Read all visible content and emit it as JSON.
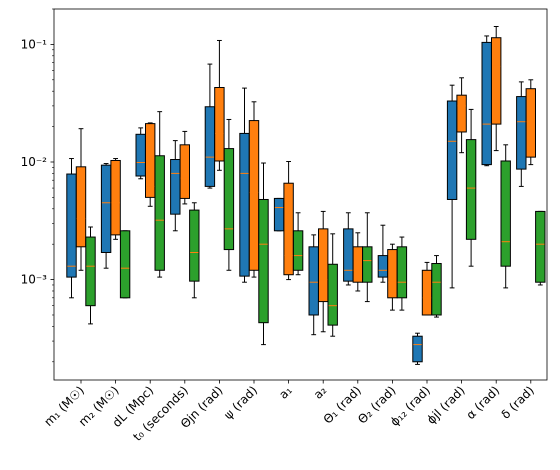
{
  "chart_data": {
    "type": "boxplot",
    "title": "",
    "xlabel": "",
    "ylabel": "",
    "yscale": "log",
    "ylim": [
      0.00014,
      0.2
    ],
    "grid": false,
    "legend": "none",
    "y_ticks": [
      {
        "value": 0.001,
        "label": "10⁻³"
      },
      {
        "value": 0.01,
        "label": "10⁻²"
      },
      {
        "value": 0.1,
        "label": "10⁻¹"
      }
    ],
    "series_colors": [
      "#1f77b4",
      "#ff7f0e",
      "#2ca02c"
    ],
    "median_color": "#ff7f0e",
    "categories": [
      {
        "label": "m₁ (M☉)",
        "boxes": [
          {
            "whislo": 0.0007,
            "q1": 0.00105,
            "med": 0.0013,
            "q3": 0.0079,
            "whishi": 0.0107
          },
          {
            "whislo": 0.0012,
            "q1": 0.0019,
            "med": 0.0033,
            "q3": 0.0091,
            "whishi": 0.0192
          },
          {
            "whislo": 0.00042,
            "q1": 0.0006,
            "med": 0.0013,
            "q3": 0.0023,
            "whishi": 0.0028
          }
        ]
      },
      {
        "label": "m₂ (M☉)",
        "boxes": [
          {
            "whislo": 0.00125,
            "q1": 0.0017,
            "med": 0.0045,
            "q3": 0.0094,
            "whishi": 0.0097
          },
          {
            "whislo": 0.0022,
            "q1": 0.0024,
            "med": 0.0045,
            "q3": 0.0103,
            "whishi": 0.0107
          },
          {
            "whislo": 0.0007,
            "q1": 0.0007,
            "med": 0.00125,
            "q3": 0.0026,
            "whishi": 0.0026
          }
        ]
      },
      {
        "label": "dL (Mpc)",
        "boxes": [
          {
            "whislo": 0.0072,
            "q1": 0.0076,
            "med": 0.0099,
            "q3": 0.0172,
            "whishi": 0.0195
          },
          {
            "whislo": 0.0042,
            "q1": 0.005,
            "med": 0.0062,
            "q3": 0.0212,
            "whishi": 0.0215
          },
          {
            "whislo": 0.00105,
            "q1": 0.0012,
            "med": 0.0032,
            "q3": 0.0113,
            "whishi": 0.0268
          }
        ]
      },
      {
        "label": "t₀ (seconds)",
        "boxes": [
          {
            "whislo": 0.0026,
            "q1": 0.0036,
            "med": 0.008,
            "q3": 0.0105,
            "whishi": 0.0152
          },
          {
            "whislo": 0.0044,
            "q1": 0.0049,
            "med": 0.0073,
            "q3": 0.014,
            "whishi": 0.0182
          },
          {
            "whislo": 0.0007,
            "q1": 0.00097,
            "med": 0.0017,
            "q3": 0.0039,
            "whishi": 0.0045
          }
        ]
      },
      {
        "label": "Θjn (rad)",
        "boxes": [
          {
            "whislo": 0.006,
            "q1": 0.0062,
            "med": 0.011,
            "q3": 0.0295,
            "whishi": 0.068
          },
          {
            "whislo": 0.0085,
            "q1": 0.0102,
            "med": 0.0175,
            "q3": 0.043,
            "whishi": 0.108
          },
          {
            "whislo": 0.0012,
            "q1": 0.0018,
            "med": 0.0027,
            "q3": 0.013,
            "whishi": 0.023
          }
        ]
      },
      {
        "label": "ψ (rad)",
        "boxes": [
          {
            "whislo": 0.00095,
            "q1": 0.00107,
            "med": 0.008,
            "q3": 0.0175,
            "whishi": 0.0425
          },
          {
            "whislo": 0.00105,
            "q1": 0.0012,
            "med": 0.0055,
            "q3": 0.0225,
            "whishi": 0.0325
          },
          {
            "whislo": 0.00028,
            "q1": 0.00043,
            "med": 0.002,
            "q3": 0.0048,
            "whishi": 0.0098
          }
        ]
      },
      {
        "label": "a₁",
        "boxes": [
          {
            "whislo": 0.0026,
            "q1": 0.0026,
            "med": 0.0041,
            "q3": 0.0049,
            "whishi": 0.0049
          },
          {
            "whislo": 0.001,
            "q1": 0.0011,
            "med": 0.0016,
            "q3": 0.0066,
            "whishi": 0.0101
          },
          {
            "whislo": 0.0011,
            "q1": 0.0012,
            "med": 0.0016,
            "q3": 0.0026,
            "whishi": 0.0037
          }
        ]
      },
      {
        "label": "a₂",
        "boxes": [
          {
            "whislo": 0.00034,
            "q1": 0.0005,
            "med": 0.00095,
            "q3": 0.0019,
            "whishi": 0.0024
          },
          {
            "whislo": 0.00036,
            "q1": 0.00065,
            "med": 0.001,
            "q3": 0.0027,
            "whishi": 0.0038
          },
          {
            "whislo": 0.00033,
            "q1": 0.00041,
            "med": 0.0006,
            "q3": 0.00135,
            "whishi": 0.00245
          }
        ]
      },
      {
        "label": "Θ₁ (rad)",
        "boxes": [
          {
            "whislo": 0.0009,
            "q1": 0.00097,
            "med": 0.0012,
            "q3": 0.0027,
            "whishi": 0.0037
          },
          {
            "whislo": 0.0008,
            "q1": 0.00095,
            "med": 0.0012,
            "q3": 0.0019,
            "whishi": 0.0025
          },
          {
            "whislo": 0.00065,
            "q1": 0.00095,
            "med": 0.00145,
            "q3": 0.0019,
            "whishi": 0.0037
          }
        ]
      },
      {
        "label": "Θ₂ (rad)",
        "boxes": [
          {
            "whislo": 0.00095,
            "q1": 0.00105,
            "med": 0.0012,
            "q3": 0.0016,
            "whishi": 0.0029
          },
          {
            "whislo": 0.00055,
            "q1": 0.0007,
            "med": 0.00095,
            "q3": 0.0018,
            "whishi": 0.002
          },
          {
            "whislo": 0.00055,
            "q1": 0.0007,
            "med": 0.00095,
            "q3": 0.0019,
            "whishi": 0.0023
          }
        ]
      },
      {
        "label": "ϕ₁₂ (rad)",
        "boxes": [
          {
            "whislo": 0.00019,
            "q1": 0.0002,
            "med": 0.00028,
            "q3": 0.00033,
            "whishi": 0.00035
          },
          {
            "whislo": 0.0005,
            "q1": 0.0005,
            "med": 0.0007,
            "q3": 0.0012,
            "whishi": 0.0014
          },
          {
            "whislo": 0.00048,
            "q1": 0.0005,
            "med": 0.00095,
            "q3": 0.00137,
            "whishi": 0.0016
          }
        ]
      },
      {
        "label": "ϕjl (rad)",
        "boxes": [
          {
            "whislo": 0.00085,
            "q1": 0.0048,
            "med": 0.015,
            "q3": 0.033,
            "whishi": 0.045
          },
          {
            "whislo": 0.012,
            "q1": 0.018,
            "med": 0.03,
            "q3": 0.037,
            "whishi": 0.052
          },
          {
            "whislo": 0.0013,
            "q1": 0.0022,
            "med": 0.006,
            "q3": 0.0155,
            "whishi": 0.028
          }
        ]
      },
      {
        "label": "α (rad)",
        "boxes": [
          {
            "whislo": 0.0093,
            "q1": 0.0095,
            "med": 0.021,
            "q3": 0.104,
            "whishi": 0.118
          },
          {
            "whislo": 0.0125,
            "q1": 0.021,
            "med": 0.065,
            "q3": 0.114,
            "whishi": 0.142
          },
          {
            "whislo": 0.00085,
            "q1": 0.0013,
            "med": 0.0021,
            "q3": 0.0102,
            "whishi": 0.014
          }
        ]
      },
      {
        "label": "δ (rad)",
        "boxes": [
          {
            "whislo": 0.0062,
            "q1": 0.0087,
            "med": 0.022,
            "q3": 0.036,
            "whishi": 0.048
          },
          {
            "whislo": 0.0095,
            "q1": 0.011,
            "med": 0.022,
            "q3": 0.042,
            "whishi": 0.05
          },
          {
            "whislo": 0.0009,
            "q1": 0.00095,
            "med": 0.002,
            "q3": 0.0038,
            "whishi": 0.0038
          }
        ]
      }
    ]
  }
}
